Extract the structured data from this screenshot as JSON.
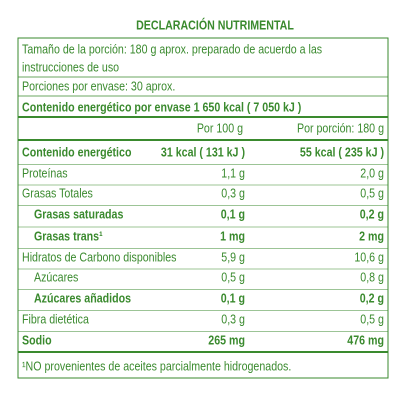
{
  "title": "DECLARACIÓN NUTRIMENTAL",
  "serving_lines": [
    "Tamaño de la porción: 180 g aprox. preparado de acuerdo a las",
    "instrucciones de uso",
    "Porciones por envase: 30 aprox."
  ],
  "energy_per_package": "Contenido energético por envase 1 650 kcal  ( 7 050 kJ )",
  "columns": [
    "Por 100 g",
    "Por porción: 180 g"
  ],
  "rows": [
    {
      "label": "Contenido energético",
      "per_100g": "31 kcal ( 131 kJ )",
      "per_serving": "55 kcal ( 235 kJ )",
      "bold": true,
      "indent": false
    },
    {
      "label": "Proteínas",
      "per_100g": "1,1 g",
      "per_serving": "2,0 g",
      "bold": false,
      "indent": false
    },
    {
      "label": "Grasas Totales",
      "per_100g": "0,3 g",
      "per_serving": "0,5 g",
      "bold": false,
      "indent": false
    },
    {
      "label": "Grasas saturadas",
      "per_100g": "0,1 g",
      "per_serving": "0,2 g",
      "bold": true,
      "indent": true
    },
    {
      "label": "Grasas trans¹",
      "per_100g": "1 mg",
      "per_serving": "2 mg",
      "bold": true,
      "indent": true
    },
    {
      "label": "Hidratos de Carbono disponibles",
      "per_100g": "5,9 g",
      "per_serving": "10,6 g",
      "bold": false,
      "indent": false
    },
    {
      "label": "Azúcares",
      "per_100g": "0,5 g",
      "per_serving": "0,8 g",
      "bold": false,
      "indent": true
    },
    {
      "label": "Azúcares añadidos",
      "per_100g": "0,1 g",
      "per_serving": "0,2 g",
      "bold": true,
      "indent": true
    },
    {
      "label": "Fibra dietética",
      "per_100g": "0,3 g",
      "per_serving": "0,5 g",
      "bold": false,
      "indent": false
    },
    {
      "label": "Sodio",
      "per_100g": "265 mg",
      "per_serving": "476 mg",
      "bold": true,
      "indent": false
    }
  ],
  "footnote": "¹NO provenientes de aceites parcialmente hidrogenados."
}
